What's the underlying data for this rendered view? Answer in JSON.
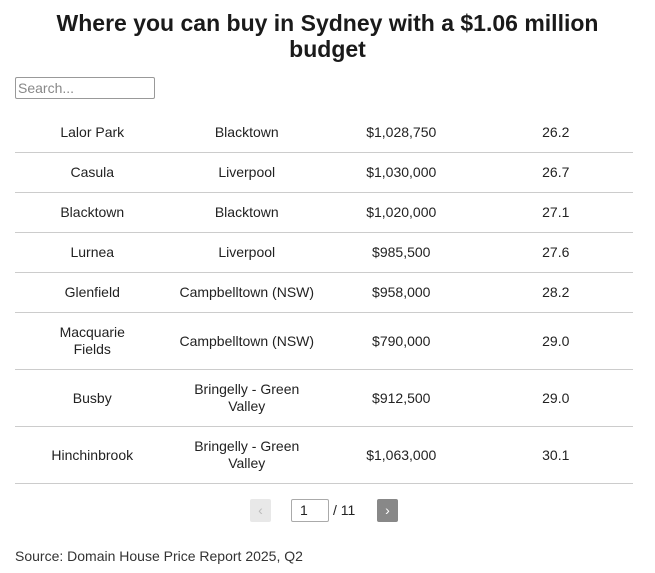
{
  "header": {
    "title": "Where you can buy in Sydney with a $1.06 million budget"
  },
  "search": {
    "placeholder": "Search..."
  },
  "table": {
    "rows": [
      [
        "Lalor Park",
        "Blacktown",
        "$1,028,750",
        "26.2"
      ],
      [
        "Casula",
        "Liverpool",
        "$1,030,000",
        "26.7"
      ],
      [
        "Blacktown",
        "Blacktown",
        "$1,020,000",
        "27.1"
      ],
      [
        "Lurnea",
        "Liverpool",
        "$985,500",
        "27.6"
      ],
      [
        "Glenfield",
        "Campbelltown (NSW)",
        "$958,000",
        "28.2"
      ],
      [
        "Macquarie Fields",
        "Campbelltown (NSW)",
        "$790,000",
        "29.0"
      ],
      [
        "Busby",
        "Bringelly - Green Valley",
        "$912,500",
        "29.0"
      ],
      [
        "Hinchinbrook",
        "Bringelly - Green Valley",
        "$1,063,000",
        "30.1"
      ]
    ]
  },
  "pagination": {
    "prev": "‹",
    "page": "1",
    "total": "/ 11",
    "next": "›"
  },
  "footer": {
    "source": "Source: Domain House Price Report 2025, Q2"
  }
}
